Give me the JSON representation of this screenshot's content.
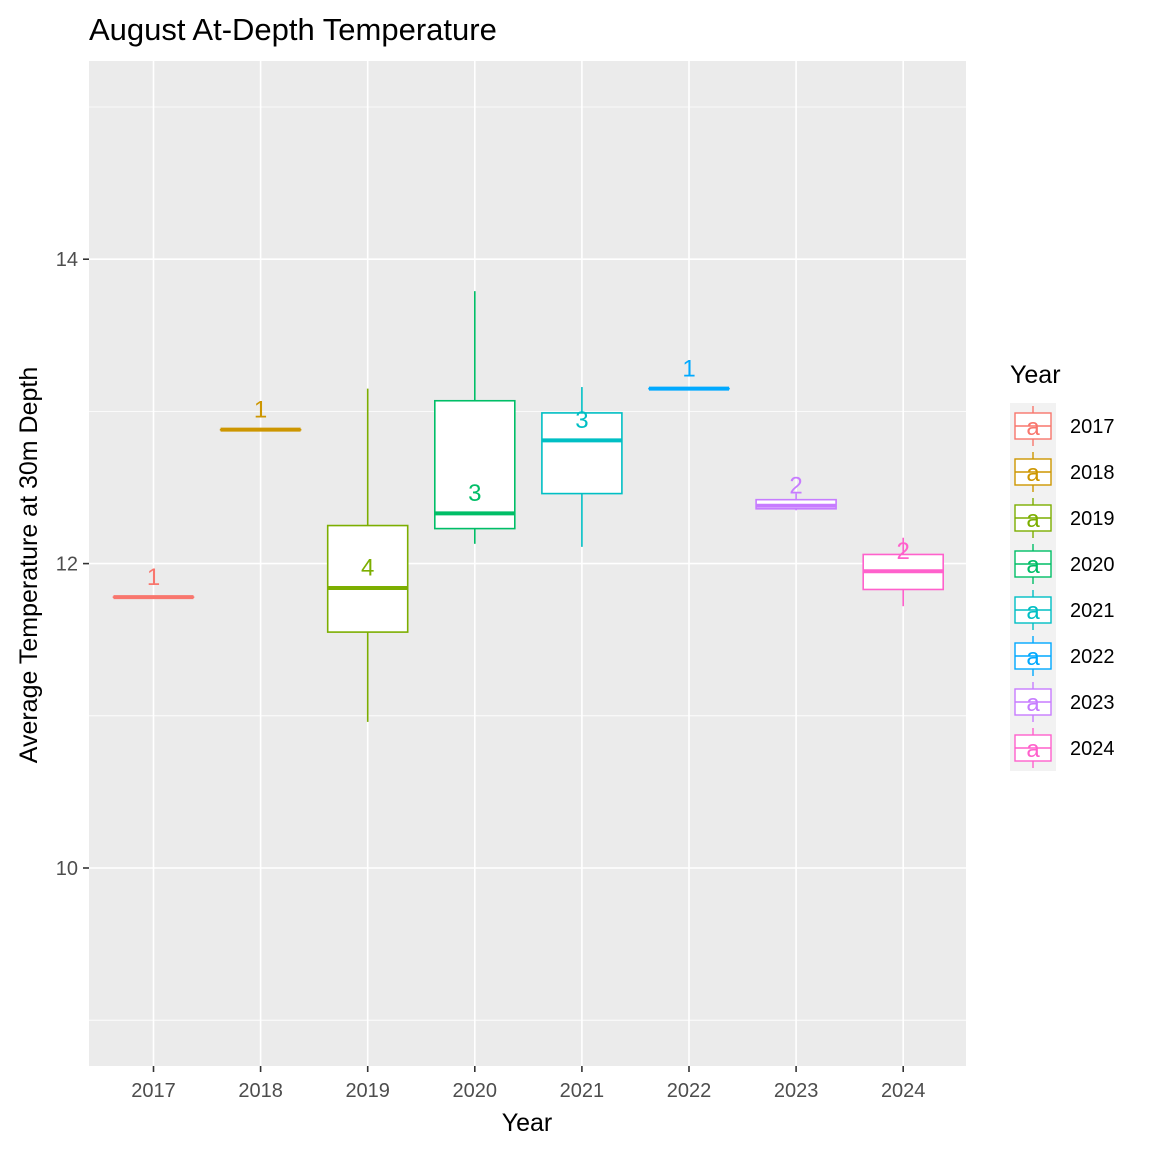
{
  "chart_data": {
    "type": "boxplot",
    "title": "August At-Depth Temperature",
    "xlabel": "Year",
    "ylabel": "Average Temperature at 30m Depth",
    "ylim": [
      8.7,
      15.3
    ],
    "yticks": [
      10,
      12,
      14
    ],
    "grid": true,
    "legend": {
      "title": "Year",
      "position": "right",
      "key_glyph": "a"
    },
    "categories": [
      "2017",
      "2018",
      "2019",
      "2020",
      "2021",
      "2022",
      "2023",
      "2024"
    ],
    "series": [
      {
        "name": "2017",
        "color": "#F8766D",
        "min": 11.78,
        "q1": 11.78,
        "median": 11.78,
        "q3": 11.78,
        "max": 11.78,
        "label": "1",
        "label_y": 11.92
      },
      {
        "name": "2018",
        "color": "#CD9600",
        "min": 12.88,
        "q1": 12.88,
        "median": 12.88,
        "q3": 12.88,
        "max": 12.88,
        "label": "1",
        "label_y": 13.02
      },
      {
        "name": "2019",
        "color": "#7CAE00",
        "min": 10.96,
        "q1": 11.55,
        "median": 11.84,
        "q3": 12.25,
        "max": 13.15,
        "label": "4",
        "label_y": 11.98
      },
      {
        "name": "2020",
        "color": "#00BE67",
        "min": 12.13,
        "q1": 12.23,
        "median": 12.33,
        "q3": 13.07,
        "max": 13.79,
        "label": "3",
        "label_y": 12.47
      },
      {
        "name": "2021",
        "color": "#00BFC4",
        "min": 12.11,
        "q1": 12.46,
        "median": 12.81,
        "q3": 12.99,
        "max": 13.16,
        "label": "3",
        "label_y": 12.95
      },
      {
        "name": "2022",
        "color": "#00A9FF",
        "min": 13.15,
        "q1": 13.15,
        "median": 13.15,
        "q3": 13.15,
        "max": 13.15,
        "label": "1",
        "label_y": 13.29
      },
      {
        "name": "2023",
        "color": "#C77CFF",
        "min": 12.35,
        "q1": 12.36,
        "median": 12.38,
        "q3": 12.42,
        "max": 12.46,
        "label": "2",
        "label_y": 12.52
      },
      {
        "name": "2024",
        "color": "#FF61CC",
        "min": 11.72,
        "q1": 11.83,
        "median": 11.95,
        "q3": 12.06,
        "max": 12.17,
        "label": "2",
        "label_y": 12.09
      }
    ]
  }
}
